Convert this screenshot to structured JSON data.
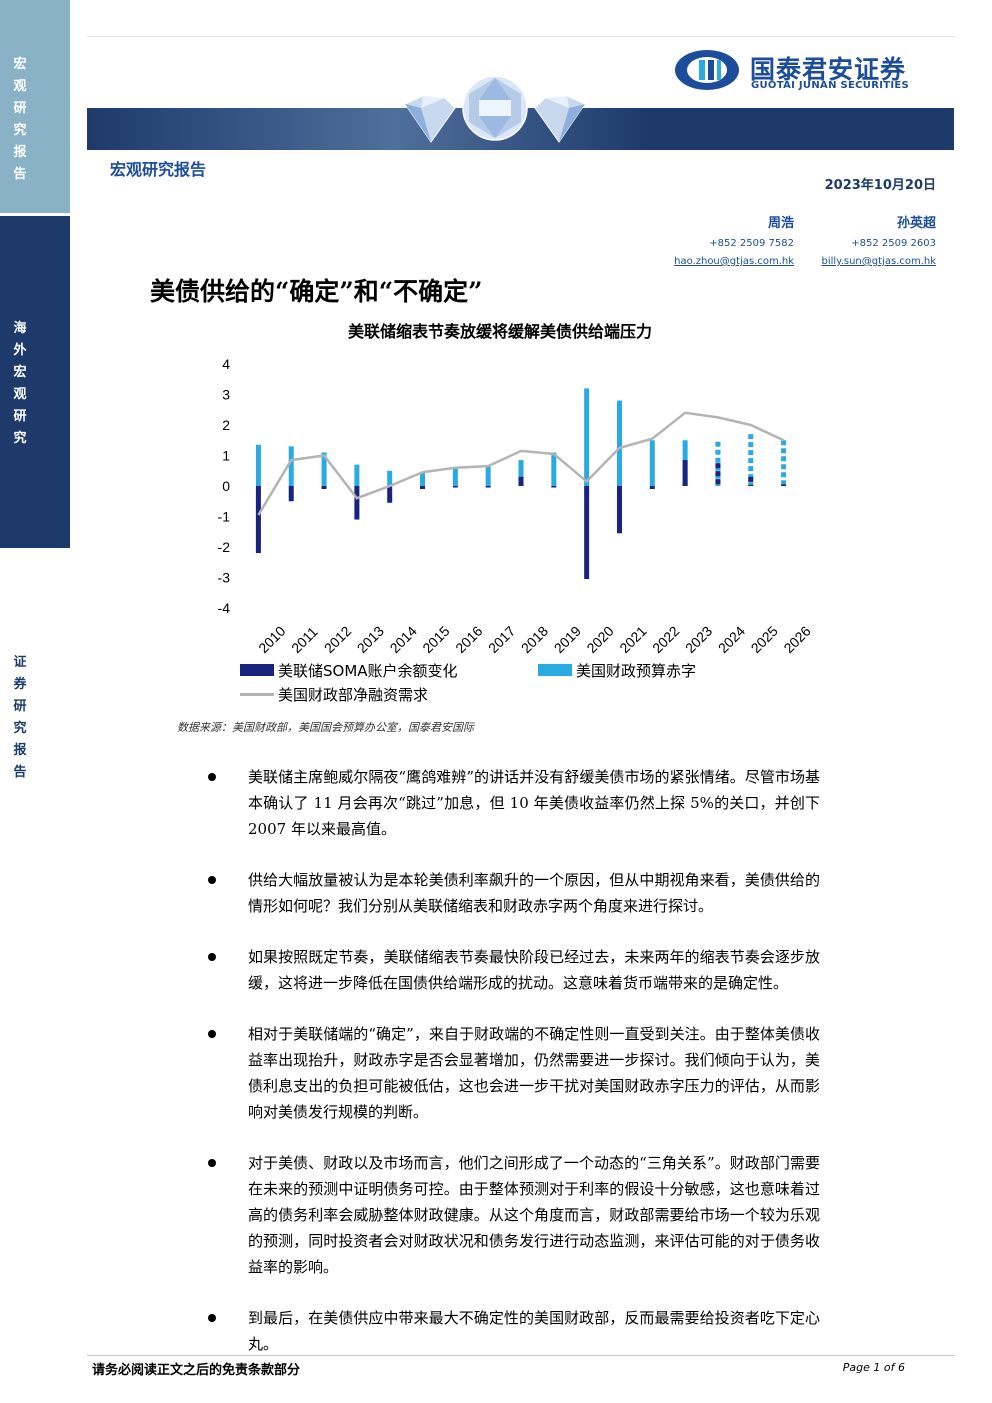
{
  "sidebar": {
    "top_label": "宏观研究报告",
    "mid_label": "海外宏观研究",
    "bottom_label": "证券研究报告"
  },
  "header": {
    "logo_cn": "国泰君安证券",
    "logo_en": "GUOTAI JUNAN SECURITIES",
    "report_type": "宏观研究报告",
    "date": "2023年10月20日",
    "brand_color": "#1d4d9a",
    "banner_color": "#1d3a6b"
  },
  "analysts": [
    {
      "name": "周浩",
      "phone": "+852 2509 7582",
      "email": "hao.zhou@gtjas.com.hk"
    },
    {
      "name": "孙英超",
      "phone": "+852 2509 2603",
      "email": "billy.sun@gtjas.com.hk"
    }
  ],
  "title": "美债供给的“确定”和“不确定”",
  "chart_data": {
    "type": "bar",
    "title": "美联储缩表节奏放缓将缓解美债供给端压力",
    "categories": [
      "2010",
      "2011",
      "2012",
      "2013",
      "2014",
      "2015",
      "2016",
      "2017",
      "2018",
      "2019",
      "2020",
      "2021",
      "2022",
      "2023",
      "2024",
      "2025",
      "2026"
    ],
    "ylim": [
      -4,
      4
    ],
    "yticks": [
      "4",
      "3",
      "2",
      "1",
      "0",
      "-1",
      "-2",
      "-3",
      "-4"
    ],
    "series": [
      {
        "name": "美联储SOMA账户余额变化",
        "kind": "bar",
        "color": "#1a237e",
        "values": [
          -2.2,
          -0.5,
          -0.1,
          -1.1,
          -0.55,
          -0.1,
          -0.05,
          -0.05,
          0.3,
          -0.05,
          -3.05,
          -1.55,
          -0.1,
          0.85,
          0.75,
          0.3,
          0.05
        ]
      },
      {
        "name": "美国财政预算赤字",
        "kind": "bar",
        "color": "#29aae1",
        "values": [
          1.35,
          1.3,
          1.1,
          0.7,
          0.5,
          0.45,
          0.6,
          0.65,
          0.85,
          1.1,
          3.2,
          2.8,
          1.5,
          1.5,
          1.45,
          1.7,
          1.5
        ]
      },
      {
        "name": "美国财政部净融资需求",
        "kind": "line",
        "color": "#b4b4b4",
        "values": [
          -0.95,
          0.85,
          1.0,
          -0.4,
          0.0,
          0.45,
          0.6,
          0.65,
          1.15,
          1.05,
          0.15,
          1.25,
          1.55,
          2.4,
          2.25,
          2.0,
          1.5
        ]
      }
    ],
    "forecast_from": "2024",
    "source": "数据来源：美国财政部，美国国会预算办公室，国泰君安国际"
  },
  "bullets": [
    "美联储主席鲍威尔隔夜“鹰鸽难辨”的讲话并没有舒缓美债市场的紧张情绪。尽管市场基本确认了 11 月会再次“跳过”加息，但 10 年美债收益率仍然上探 5%的关口，并创下 2007 年以来最高值。",
    "供给大幅放量被认为是本轮美债利率飙升的一个原因，但从中期视角来看，美债供给的情形如何呢？我们分别从美联储缩表和财政赤字两个角度来进行探讨。",
    "如果按照既定节奏，美联储缩表节奏最快阶段已经过去，未来两年的缩表节奏会逐步放缓，这将进一步降低在国债供给端形成的扰动。这意味着货币端带来的是确定性。",
    "相对于美联储端的“确定”，来自于财政端的不确定性则一直受到关注。由于整体美债收益率出现抬升，财政赤字是否会显著增加，仍然需要进一步探讨。我们倾向于认为，美债利息支出的负担可能被低估，这也会进一步干扰对美国财政赤字压力的评估，从而影响对美债发行规模的判断。",
    "对于美债、财政以及市场而言，他们之间形成了一个动态的“三角关系”。财政部门需要在未来的预测中证明债务可控。由于整体预测对于利率的假设十分敏感，这也意味着过高的债务利率会威胁整体财政健康。从这个角度而言，财政部需要给市场一个较为乐观的预测，同时投资者会对财政状况和债务发行进行动态监测，来评估可能的对于债务收益率的影响。",
    "到最后，在美债供应中带来最大不确定性的美国财政部，反而最需要给投资者吃下定心丸。"
  ],
  "footer": {
    "disclaimer": "请务必阅读正文之后的免责条款部分",
    "page": "Page 1 of 6"
  }
}
